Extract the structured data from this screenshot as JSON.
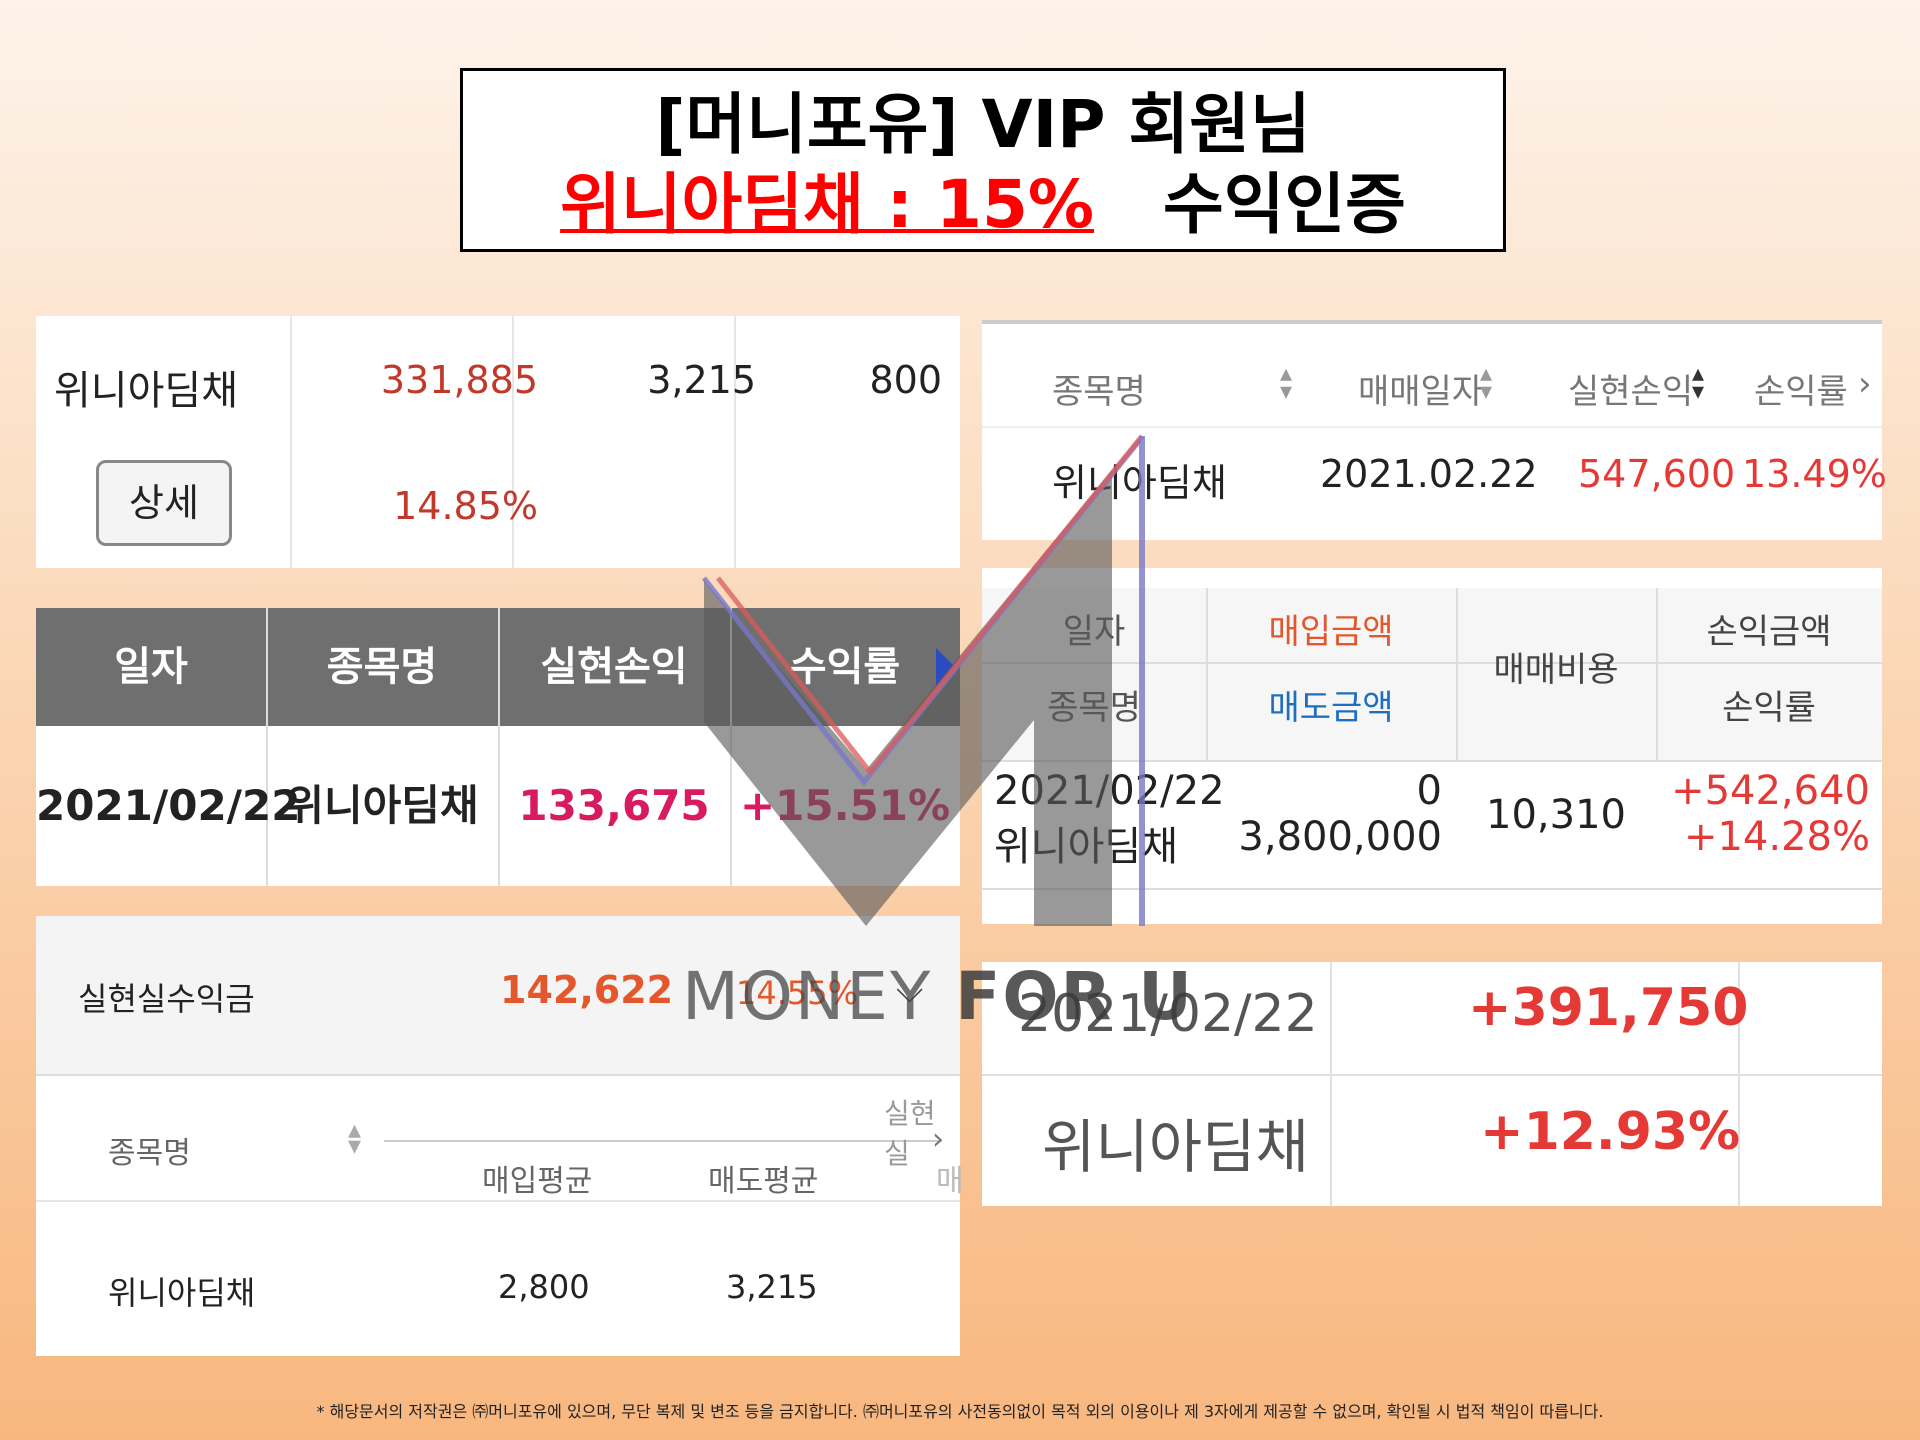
{
  "title": {
    "line1": "[머니포유] VIP 회원님",
    "line2_highlight": "위니아딤채 : 15%",
    "line2_rest": "수익인증"
  },
  "panel_a": {
    "name": "위니아딤채",
    "detail_button": "상세",
    "value1": "331,885",
    "value2": "3,215",
    "value3": "800",
    "rate": "14.85%"
  },
  "panel_b": {
    "headers": [
      "일자",
      "종목명",
      "실현손익",
      "수익률"
    ],
    "row": {
      "date": "2021/02/22",
      "name": "위니아딤채",
      "profit": "133,675",
      "rate": "+15.51%"
    }
  },
  "panel_c": {
    "summary_label": "실현실수익금",
    "summary_amount": "142,622",
    "summary_rate": "14.55%",
    "col_name": "종목명",
    "col_realized": "실현실",
    "col_buy_avg": "매입평균",
    "col_sell_avg": "매도평균",
    "col_extra": "매",
    "row": {
      "name": "위니아딤채",
      "buy_avg": "2,800",
      "sell_avg": "3,215"
    }
  },
  "panel_d": {
    "headers": [
      "종목명",
      "매매일자",
      "실현손익",
      "손익률"
    ],
    "row": {
      "name": "위니아딤채",
      "date": "2021.02.22",
      "profit": "547,600",
      "rate": "13.49%"
    }
  },
  "panel_e": {
    "h_date": "일자",
    "h_name": "종목명",
    "h_buy": "매입금액",
    "h_sell": "매도금액",
    "h_fee": "매매비용",
    "h_pl_amount": "손익금액",
    "h_pl_rate": "손익률",
    "row": {
      "date": "2021/02/22",
      "name": "위니아딤채",
      "buy": "0",
      "sell": "3,800,000",
      "fee": "10,310",
      "pl_amount": "+542,640",
      "pl_rate": "+14.28%"
    }
  },
  "panel_f": {
    "date": "2021/02/22",
    "amount": "+391,750",
    "name": "위니아딤채",
    "rate": "+12.93%"
  },
  "watermark": {
    "text_a": "MONEY",
    "text_b": "FOR U"
  },
  "footer": "* 해당문서의 저작권은 ㈜머니포유에 있으며, 무단 복제 및 변조 등을 금지합니다. ㈜머니포유의 사전동의없이 목적 외의 이용이나 제 3자에게 제공할 수 없으며, 확인될 시 법적 책임이 따릅니다.",
  "colors": {
    "red": "#e53935",
    "loss_red": "#c0392b",
    "pink": "#d81b60",
    "orange": "#e2572b",
    "blue_label": "#1e6fc0",
    "header_gray": "#6f6f6f"
  }
}
